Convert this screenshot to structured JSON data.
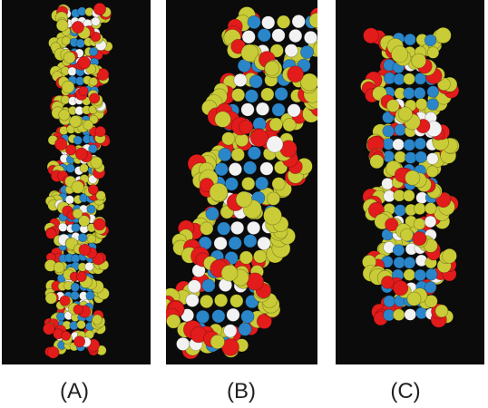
{
  "panels": [
    {
      "label": "(A)"
    },
    {
      "label": "(B)"
    },
    {
      "label": "(C)"
    }
  ],
  "colors": {
    "background": "#0b0b0b",
    "carbon": "#c9cc36",
    "oxygen": "#e21b1b",
    "nitrogen": "#2a86c9",
    "hydrogen": "#f2f2f2"
  }
}
